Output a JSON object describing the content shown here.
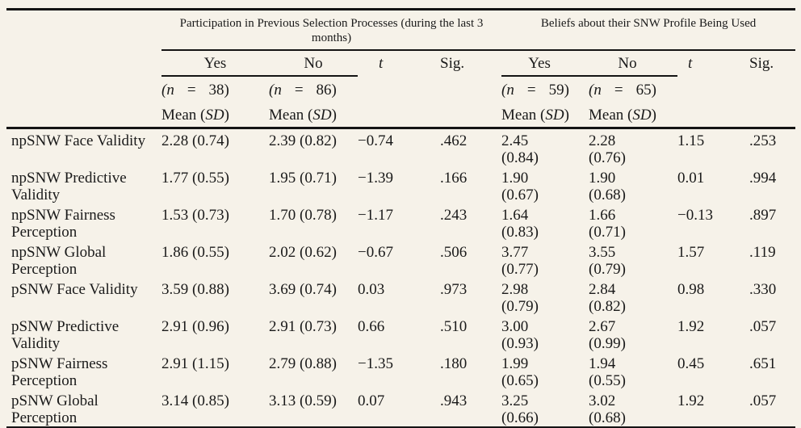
{
  "colors": {
    "background": "#f6f2e9",
    "text": "#1a1a1a",
    "rule": "#141414"
  },
  "header": {
    "mean_label": {
      "pre": "Mean (",
      "sd": "SD",
      "post": ")"
    },
    "group1": {
      "title_lines": [
        "Participation in Previous Selection Processes (during the last 3",
        "months)"
      ],
      "yes_label": "Yes",
      "no_label": "No",
      "t_label": "t",
      "sig_label": "Sig.",
      "n_yes": {
        "open": "(n",
        "eq": "=",
        "close": "38)"
      },
      "n_no": {
        "open": "(n",
        "eq": "=",
        "close": "86)"
      }
    },
    "group2": {
      "title_lines": [
        "Beliefs about their SNW Profile Being Used"
      ],
      "yes_label": "Yes",
      "no_label": "No",
      "t_label": "t",
      "sig_label": "Sig.",
      "n_yes": {
        "open": "(n",
        "eq": "=",
        "close": "59)"
      },
      "n_no": {
        "open": "(n",
        "eq": "=",
        "close": "65)"
      }
    }
  },
  "rows": [
    {
      "label": [
        "npSNW Face Validity"
      ],
      "g1_yes": "2.28 (0.74)",
      "g1_no": "2.39 (0.82)",
      "g1_t": "−0.74",
      "g1_sig": ".462",
      "g2_yes": [
        "2.45",
        "(0.84)"
      ],
      "g2_no": [
        "2.28",
        "(0.76)"
      ],
      "g2_t": "1.15",
      "g2_sig": ".253"
    },
    {
      "label": [
        "npSNW Predictive",
        "Validity"
      ],
      "g1_yes": "1.77 (0.55)",
      "g1_no": "1.95 (0.71)",
      "g1_t": "−1.39",
      "g1_sig": ".166",
      "g2_yes": [
        "1.90",
        "(0.67)"
      ],
      "g2_no": [
        "1.90",
        "(0.68)"
      ],
      "g2_t": "0.01",
      "g2_sig": ".994"
    },
    {
      "label": [
        "npSNW Fairness",
        "Perception"
      ],
      "g1_yes": "1.53 (0.73)",
      "g1_no": "1.70 (0.78)",
      "g1_t": "−1.17",
      "g1_sig": ".243",
      "g2_yes": [
        "1.64",
        "(0.83)"
      ],
      "g2_no": [
        "1.66",
        "(0.71)"
      ],
      "g2_t": "−0.13",
      "g2_sig": ".897"
    },
    {
      "label": [
        "npSNW Global",
        "Perception"
      ],
      "g1_yes": "1.86 (0.55)",
      "g1_no": "2.02 (0.62)",
      "g1_t": "−0.67",
      "g1_sig": ".506",
      "g2_yes": [
        "3.77",
        "(0.77)"
      ],
      "g2_no": [
        "3.55",
        "(0.79)"
      ],
      "g2_t": "1.57",
      "g2_sig": ".119"
    },
    {
      "label": [
        "pSNW Face Validity"
      ],
      "g1_yes": "3.59 (0.88)",
      "g1_no": "3.69 (0.74)",
      "g1_t": "0.03",
      "g1_sig": ".973",
      "g2_yes": [
        "2.98",
        "(0.79)"
      ],
      "g2_no": [
        "2.84",
        "(0.82)"
      ],
      "g2_t": "0.98",
      "g2_sig": ".330"
    },
    {
      "label": [
        "pSNW Predictive",
        "Validity"
      ],
      "g1_yes": "2.91 (0.96)",
      "g1_no": "2.91 (0.73)",
      "g1_t": "0.66",
      "g1_sig": ".510",
      "g2_yes": [
        "3.00",
        "(0.93)"
      ],
      "g2_no": [
        "2.67",
        "(0.99)"
      ],
      "g2_t": "1.92",
      "g2_sig": ".057"
    },
    {
      "label": [
        "pSNW Fairness",
        "Perception"
      ],
      "g1_yes": "2.91 (1.15)",
      "g1_no": "2.79 (0.88)",
      "g1_t": "−1.35",
      "g1_sig": ".180",
      "g2_yes": [
        "1.99",
        "(0.65)"
      ],
      "g2_no": [
        "1.94",
        "(0.55)"
      ],
      "g2_t": "0.45",
      "g2_sig": ".651"
    },
    {
      "label": [
        "pSNW Global",
        "Perception"
      ],
      "g1_yes": "3.14 (0.85)",
      "g1_no": "3.13 (0.59)",
      "g1_t": "0.07",
      "g1_sig": ".943",
      "g2_yes": [
        "3.25",
        "(0.66)"
      ],
      "g2_no": [
        "3.02",
        "(0.68)"
      ],
      "g2_t": "1.92",
      "g2_sig": ".057"
    }
  ]
}
